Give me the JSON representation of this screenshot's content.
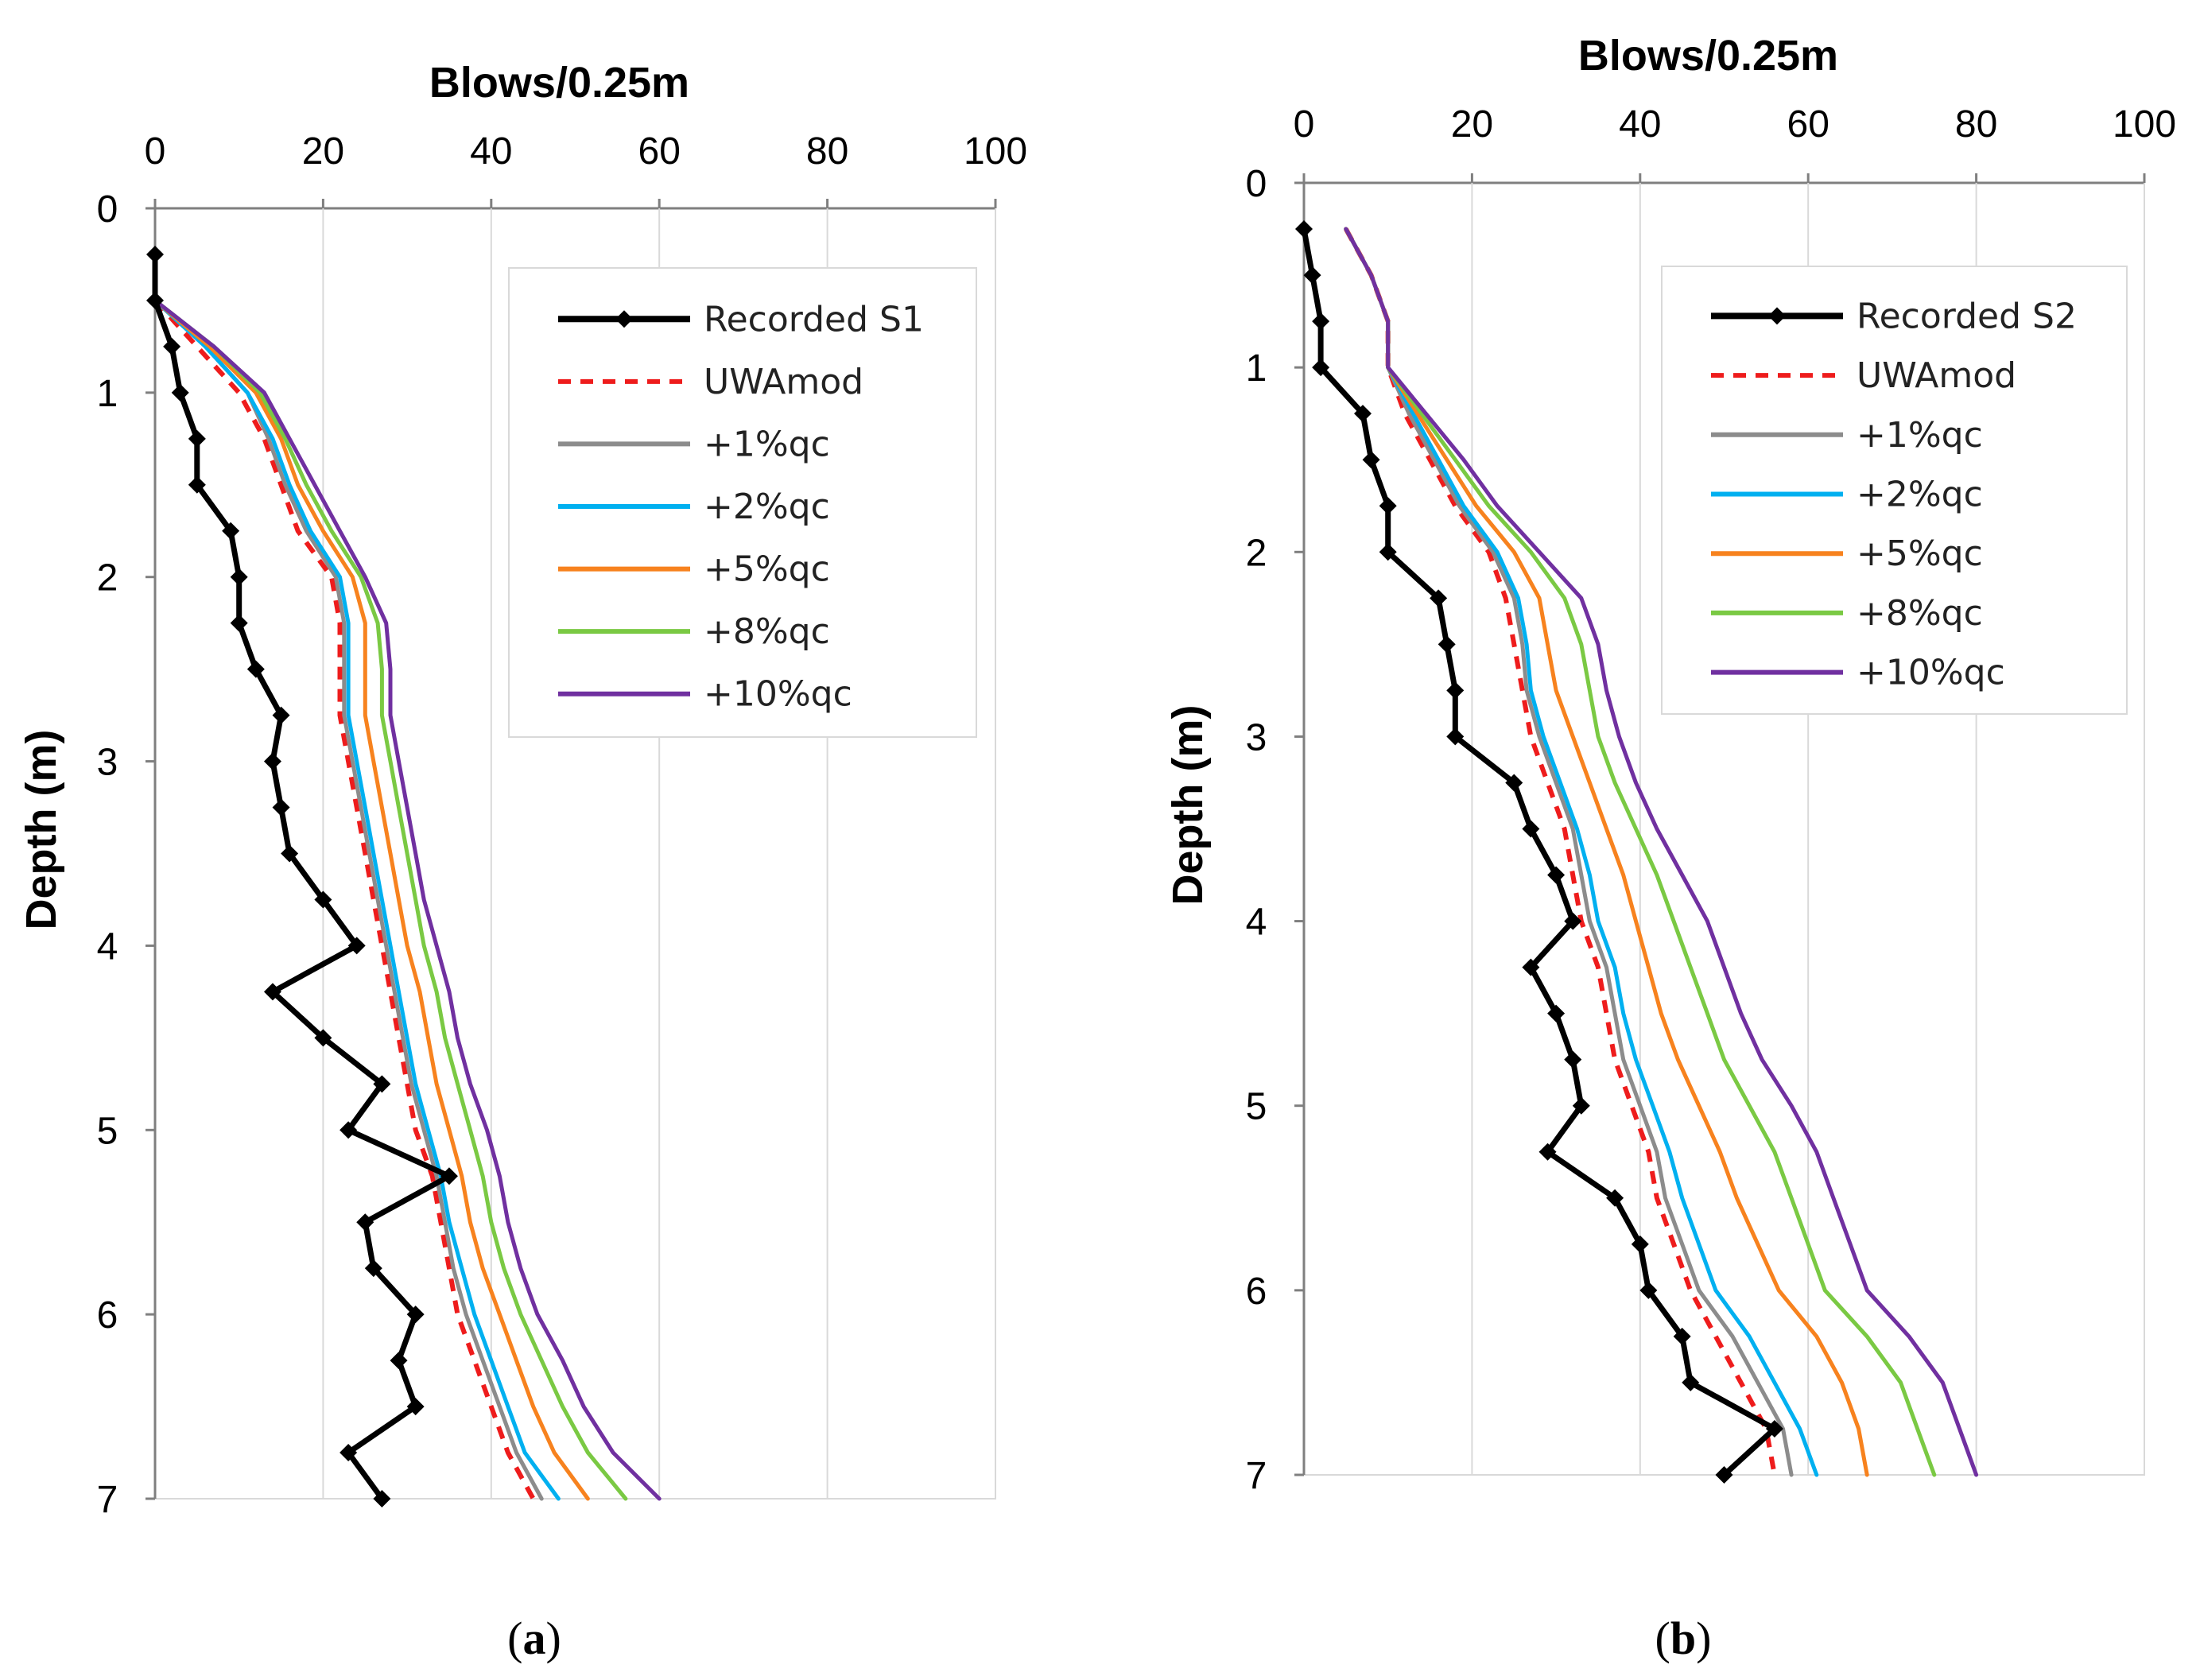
{
  "chart_data": [
    {
      "type": "line",
      "panel_label": "a",
      "xlabel": "Blows/0.25m",
      "ylabel": "Depth (m)",
      "xlim": [
        0,
        100
      ],
      "ylim": [
        7,
        0
      ],
      "x_ticks": [
        "0",
        "20",
        "40",
        "60",
        "80",
        "100"
      ],
      "y_ticks": [
        "0",
        "1",
        "2",
        "3",
        "4",
        "5",
        "6",
        "7"
      ],
      "legend_position": "top-right",
      "series": [
        {
          "name": "Recorded S1",
          "color": "#000000",
          "style": "solid-markers",
          "depth": [
            0.25,
            0.5,
            0.75,
            1.0,
            1.25,
            1.5,
            1.75,
            2.0,
            2.25,
            2.5,
            2.75,
            3.0,
            3.25,
            3.5,
            3.75,
            4.0,
            4.25,
            4.5,
            4.75,
            5.0,
            5.25,
            5.5,
            5.75,
            6.0,
            6.25,
            6.5,
            6.75,
            7.0
          ],
          "blows": [
            0,
            0,
            2,
            3,
            5,
            5,
            9,
            10,
            10,
            12,
            15,
            14,
            15,
            16,
            20,
            24,
            14,
            20,
            27,
            23,
            35,
            25,
            26,
            31,
            29,
            31,
            23,
            27
          ]
        },
        {
          "name": "UWAmod",
          "color": "#ee1c1c",
          "style": "dashed",
          "depth": [
            0.5,
            0.75,
            1.0,
            1.25,
            1.5,
            1.75,
            2.0,
            2.25,
            2.5,
            2.75,
            3.0,
            3.25,
            3.5,
            3.75,
            4.0,
            4.25,
            4.5,
            4.75,
            5.0,
            5.25,
            5.5,
            5.75,
            6.0,
            6.25,
            6.5,
            6.75,
            7.0
          ],
          "blows": [
            0,
            5,
            10,
            13,
            15,
            17,
            21,
            22,
            22,
            22,
            23,
            24,
            25,
            26,
            27,
            28,
            29,
            30,
            31,
            33,
            34,
            35,
            36,
            38,
            40,
            42,
            45
          ]
        },
        {
          "name": "+1%qc",
          "color": "#8c8c8c",
          "style": "solid",
          "depth": [
            0.5,
            0.75,
            1.0,
            1.25,
            1.5,
            1.75,
            2.0,
            2.25,
            2.5,
            2.75,
            3.0,
            3.25,
            3.5,
            3.75,
            4.0,
            4.25,
            4.5,
            4.75,
            5.0,
            5.25,
            5.5,
            5.75,
            6.0,
            6.25,
            6.5,
            6.75,
            7.0
          ],
          "blows": [
            0,
            6,
            11,
            13.5,
            15.5,
            18,
            21.5,
            22.5,
            22.5,
            22.5,
            23.5,
            24.5,
            25.5,
            26.5,
            27.5,
            28.5,
            29.5,
            30.5,
            32,
            33.5,
            34.5,
            35.5,
            37,
            39,
            41,
            43,
            46
          ]
        },
        {
          "name": "+2%qc",
          "color": "#00b0f0",
          "style": "solid",
          "depth": [
            0.5,
            0.75,
            1.0,
            1.25,
            1.5,
            1.75,
            2.0,
            2.25,
            2.5,
            2.75,
            3.0,
            3.25,
            3.5,
            3.75,
            4.0,
            4.25,
            4.5,
            4.75,
            5.0,
            5.25,
            5.5,
            5.75,
            6.0,
            6.25,
            6.5,
            6.75,
            7.0
          ],
          "blows": [
            0,
            6,
            11,
            14,
            16,
            18.5,
            22,
            23,
            23,
            23,
            24,
            25,
            26,
            27,
            28,
            29,
            30,
            31,
            32.5,
            34,
            35,
            36.5,
            38,
            40,
            42,
            44,
            48
          ]
        },
        {
          "name": "+5%qc",
          "color": "#f7821e",
          "style": "solid",
          "depth": [
            0.5,
            0.75,
            1.0,
            1.25,
            1.5,
            1.75,
            2.0,
            2.25,
            2.5,
            2.75,
            3.0,
            3.25,
            3.5,
            3.75,
            4.0,
            4.25,
            4.5,
            4.75,
            5.0,
            5.25,
            5.5,
            5.75,
            6.0,
            6.25,
            6.5,
            6.75,
            7.0
          ],
          "blows": [
            0,
            6.5,
            12,
            15,
            17,
            20,
            23.5,
            25,
            25,
            25,
            26,
            27,
            28,
            29,
            30,
            31.5,
            32.5,
            33.5,
            35,
            36.5,
            37.5,
            39,
            41,
            43,
            45,
            47.5,
            51.5
          ]
        },
        {
          "name": "+8%qc",
          "color": "#7ac943",
          "style": "solid",
          "depth": [
            0.5,
            0.75,
            1.0,
            1.25,
            1.5,
            1.75,
            2.0,
            2.25,
            2.5,
            2.75,
            3.0,
            3.25,
            3.5,
            3.75,
            4.0,
            4.25,
            4.5,
            4.75,
            5.0,
            5.25,
            5.5,
            5.75,
            6.0,
            6.25,
            6.5,
            6.75,
            7.0
          ],
          "blows": [
            0,
            7,
            12.5,
            15.5,
            18,
            21,
            24.5,
            26.5,
            27,
            27,
            28,
            29,
            30,
            31,
            32,
            33.5,
            34.5,
            36,
            37.5,
            39,
            40,
            41.5,
            43.5,
            46,
            48.5,
            51.5,
            56
          ]
        },
        {
          "name": "+10%qc",
          "color": "#7030a0",
          "style": "solid",
          "depth": [
            0.5,
            0.75,
            1.0,
            1.25,
            1.5,
            1.75,
            2.0,
            2.25,
            2.5,
            2.75,
            3.0,
            3.25,
            3.5,
            3.75,
            4.0,
            4.25,
            4.5,
            4.75,
            5.0,
            5.25,
            5.5,
            5.75,
            6.0,
            6.25,
            6.5,
            6.75,
            7.0
          ],
          "blows": [
            0,
            7,
            13,
            16,
            19,
            22,
            25,
            27.5,
            28,
            28,
            29,
            30,
            31,
            32,
            33.5,
            35,
            36,
            37.5,
            39.5,
            41,
            42,
            43.5,
            45.5,
            48.5,
            51,
            54.5,
            60
          ]
        }
      ]
    },
    {
      "type": "line",
      "panel_label": "b",
      "xlabel": "Blows/0.25m",
      "ylabel": "Depth (m)",
      "xlim": [
        0,
        100
      ],
      "ylim": [
        7,
        0
      ],
      "x_ticks": [
        "0",
        "20",
        "40",
        "60",
        "80",
        "100"
      ],
      "y_ticks": [
        "0",
        "1",
        "2",
        "3",
        "4",
        "5",
        "6",
        "7"
      ],
      "legend_position": "top-right",
      "series": [
        {
          "name": "Recorded S2",
          "color": "#000000",
          "style": "solid-markers",
          "depth": [
            0.25,
            0.5,
            0.75,
            1.0,
            1.25,
            1.5,
            1.75,
            2.0,
            2.25,
            2.5,
            2.75,
            3.0,
            3.25,
            3.5,
            3.75,
            4.0,
            4.25,
            4.5,
            4.75,
            5.0,
            5.25,
            5.5,
            5.75,
            6.0,
            6.25,
            6.5,
            6.75,
            7.0
          ],
          "blows": [
            0,
            1,
            2,
            2,
            7,
            8,
            10,
            10,
            16,
            17,
            18,
            18,
            25,
            27,
            30,
            32,
            27,
            30,
            32,
            33,
            29,
            37,
            40,
            41,
            45,
            46,
            56,
            50
          ]
        },
        {
          "name": "UWAmod",
          "color": "#ee1c1c",
          "style": "dashed",
          "depth": [
            0.25,
            0.5,
            0.75,
            1.0,
            1.25,
            1.5,
            1.75,
            2.0,
            2.25,
            2.5,
            2.75,
            3.0,
            3.25,
            3.5,
            3.75,
            4.0,
            4.25,
            4.5,
            4.75,
            5.0,
            5.25,
            5.5,
            5.75,
            6.0,
            6.25,
            6.5,
            6.75,
            7.0
          ],
          "blows": [
            5,
            8,
            10,
            10,
            12,
            15,
            18,
            22,
            24,
            25,
            26,
            27,
            29,
            31,
            32,
            33,
            35,
            36,
            37,
            39,
            41,
            42,
            44,
            46,
            49,
            52,
            55,
            56
          ]
        },
        {
          "name": "+1%qc",
          "color": "#8c8c8c",
          "style": "solid",
          "depth": [
            0.25,
            0.5,
            0.75,
            1.0,
            1.25,
            1.5,
            1.75,
            2.0,
            2.25,
            2.5,
            2.75,
            3.0,
            3.25,
            3.5,
            3.75,
            4.0,
            4.25,
            4.5,
            4.75,
            5.0,
            5.25,
            5.5,
            5.75,
            6.0,
            6.25,
            6.5,
            6.75,
            7.0
          ],
          "blows": [
            5,
            8,
            10,
            10,
            12.5,
            15.5,
            18.5,
            22.5,
            25,
            26,
            26.5,
            28,
            30,
            32,
            33,
            34,
            36,
            37,
            38,
            40,
            42,
            43,
            45,
            47,
            51,
            54,
            57,
            58
          ]
        },
        {
          "name": "+2%qc",
          "color": "#00b0f0",
          "style": "solid",
          "depth": [
            0.25,
            0.5,
            0.75,
            1.0,
            1.25,
            1.5,
            1.75,
            2.0,
            2.25,
            2.5,
            2.75,
            3.0,
            3.25,
            3.5,
            3.75,
            4.0,
            4.25,
            4.5,
            4.75,
            5.0,
            5.25,
            5.5,
            5.75,
            6.0,
            6.25,
            6.5,
            6.75,
            7.0
          ],
          "blows": [
            5,
            8,
            10,
            10,
            13,
            16,
            19,
            23,
            25.5,
            26.5,
            27,
            28.5,
            30.5,
            32.5,
            34,
            35,
            37,
            38,
            39.5,
            41.5,
            43.5,
            45,
            47,
            49,
            53,
            56,
            59,
            61
          ]
        },
        {
          "name": "+5%qc",
          "color": "#f7821e",
          "style": "solid",
          "depth": [
            0.25,
            0.5,
            0.75,
            1.0,
            1.25,
            1.5,
            1.75,
            2.0,
            2.25,
            2.5,
            2.75,
            3.0,
            3.25,
            3.5,
            3.75,
            4.0,
            4.25,
            4.5,
            4.75,
            5.0,
            5.25,
            5.5,
            5.75,
            6.0,
            6.25,
            6.5,
            6.75,
            7.0
          ],
          "blows": [
            5,
            8,
            10,
            10,
            13.5,
            17,
            20.5,
            25,
            28,
            29,
            30,
            32,
            34,
            36,
            38,
            39.5,
            41,
            42.5,
            44.5,
            47,
            49.5,
            51.5,
            54,
            56.5,
            61,
            64,
            66,
            67
          ]
        },
        {
          "name": "+8%qc",
          "color": "#7ac943",
          "style": "solid",
          "depth": [
            0.25,
            0.5,
            0.75,
            1.0,
            1.25,
            1.5,
            1.75,
            2.0,
            2.25,
            2.5,
            2.75,
            3.0,
            3.25,
            3.5,
            3.75,
            4.0,
            4.25,
            4.5,
            4.75,
            5.0,
            5.25,
            5.5,
            5.75,
            6.0,
            6.25,
            6.5,
            6.75,
            7.0
          ],
          "blows": [
            5,
            8,
            10,
            10,
            14,
            18,
            22,
            27,
            31,
            33,
            34,
            35,
            37,
            39.5,
            42,
            44,
            46,
            48,
            50,
            53,
            56,
            58,
            60,
            62,
            67,
            71,
            73,
            75
          ]
        },
        {
          "name": "+10%qc",
          "color": "#7030a0",
          "style": "solid",
          "depth": [
            0.25,
            0.5,
            0.75,
            1.0,
            1.25,
            1.5,
            1.75,
            2.0,
            2.25,
            2.5,
            2.75,
            3.0,
            3.25,
            3.5,
            3.75,
            4.0,
            4.25,
            4.5,
            4.75,
            5.0,
            5.25,
            5.5,
            5.75,
            6.0,
            6.25,
            6.5,
            6.75,
            7.0
          ],
          "blows": [
            5,
            8,
            10,
            10,
            14.5,
            19,
            23,
            28,
            33,
            35,
            36,
            37.5,
            39.5,
            42,
            45,
            48,
            50,
            52,
            54.5,
            58,
            61,
            63,
            65,
            67,
            72,
            76,
            78,
            80
          ]
        }
      ]
    }
  ]
}
